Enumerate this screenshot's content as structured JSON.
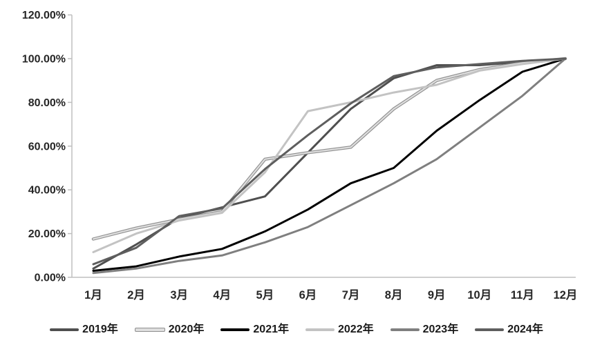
{
  "chart_data": {
    "type": "line",
    "title": "",
    "xlabel": "",
    "ylabel": "",
    "x": [
      "1月",
      "2月",
      "3月",
      "4月",
      "5月",
      "6月",
      "7月",
      "8月",
      "9月",
      "10月",
      "11月",
      "12月"
    ],
    "ylim": [
      0,
      120
    ],
    "ytick_step": 20,
    "ytick_labels": [
      "0.00%",
      "20.00%",
      "40.00%",
      "60.00%",
      "80.00%",
      "100.00%",
      "120.00%"
    ],
    "grid": false,
    "legend_position": "bottom",
    "axis_color": "#bfbfbf",
    "series": [
      {
        "name": "2019年",
        "color": "#4f4f4f",
        "style": "solid",
        "values": [
          4,
          15,
          27,
          32,
          37,
          57,
          77,
          91,
          97,
          97,
          98.5,
          100
        ]
      },
      {
        "name": "2020年",
        "color": "#a6a6a6",
        "style": "outlined",
        "values": [
          17.5,
          22.5,
          26.5,
          30,
          54,
          57,
          59.5,
          77,
          90,
          95,
          98,
          100
        ]
      },
      {
        "name": "2021年",
        "color": "#000000",
        "style": "solid",
        "values": [
          3,
          5,
          9.5,
          13,
          21,
          31,
          43,
          50,
          67,
          81,
          94,
          100
        ]
      },
      {
        "name": "2022年",
        "color": "#c3c3c3",
        "style": "solid",
        "values": [
          11.5,
          20,
          26,
          29.5,
          48,
          76,
          80,
          84.5,
          88,
          94.5,
          97.5,
          100
        ]
      },
      {
        "name": "2023年",
        "color": "#7f7f7f",
        "style": "solid",
        "values": [
          2,
          4,
          7.5,
          10,
          16,
          23,
          33,
          43,
          54,
          68.5,
          83,
          100
        ]
      },
      {
        "name": "2024年",
        "color": "#5e5e5e",
        "style": "solid",
        "values": [
          6,
          13.5,
          28,
          31.5,
          49.5,
          65,
          79.5,
          92,
          96,
          97.5,
          99,
          100
        ]
      }
    ]
  }
}
